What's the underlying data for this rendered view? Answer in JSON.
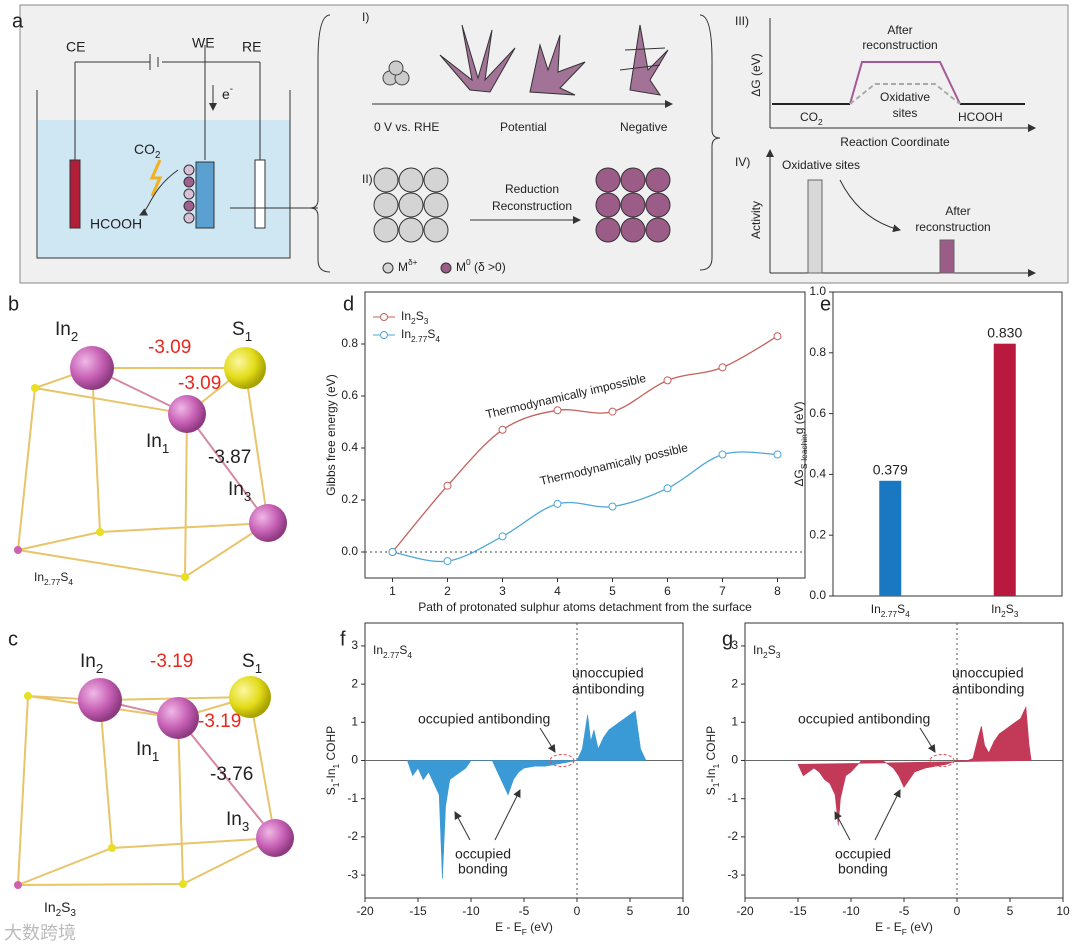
{
  "panel_a": {
    "label": "a",
    "ce": "CE",
    "we": "WE",
    "re": "RE",
    "electron": "e-",
    "co2": "CO2",
    "hcooh": "HCOOH",
    "s1": "I)",
    "s1_a": "0 V vs. RHE",
    "s1_b": "Potential",
    "s1_c": "Negative",
    "s2": "II)",
    "s2_l1": "Reduction",
    "s2_l2": "Reconstruction",
    "leg1": "Mδ+",
    "leg2": "M0 (δ >0)",
    "s3": "III)",
    "s3_y": "ΔG (eV)",
    "s3_a1": "After",
    "s3_a2": "reconstruction",
    "s3_o1": "Oxidative",
    "s3_o2": "sites",
    "s3_co2": "CO2",
    "s3_hcooh": "HCOOH",
    "s3_x": "Reaction Coordinate",
    "s4": "IV)",
    "s4_o": "Oxidative sites",
    "s4_y": "Activity",
    "s4_a1": "After",
    "s4_a2": "reconstruction"
  },
  "panel_b": {
    "label": "b",
    "in2": "In2",
    "s1": "S1",
    "e1": "-3.09",
    "e2": "-3.09",
    "in1": "In1",
    "e3": "-3.87",
    "in3": "In3",
    "formula": "In2.77S4"
  },
  "panel_c": {
    "label": "c",
    "in2": "In2",
    "s1": "S1",
    "e1": "-3.19",
    "e2": "-3.19",
    "in1": "In1",
    "e3": "-3.76",
    "in3": "In3",
    "formula": "In2S3"
  },
  "watermark": "大数跨境",
  "chart_data": [
    {
      "type": "line",
      "panel": "d",
      "x_label": "Path of protonated sulphur atoms detachment from the surface",
      "y_label": "Gibbs free energy (eV)",
      "x": [
        1,
        2,
        3,
        4,
        5,
        6,
        7,
        8
      ],
      "series": [
        {
          "name": "In2S3",
          "color": "#c4605c",
          "values": [
            0,
            0.255,
            0.47,
            0.545,
            0.54,
            0.66,
            0.71,
            0.83
          ]
        },
        {
          "name": "In2.77S4",
          "color": "#4ea6d8",
          "values": [
            0,
            -0.035,
            0.06,
            0.185,
            0.175,
            0.245,
            0.375,
            0.375
          ]
        }
      ],
      "annotations": [
        "Thermodynamically impossible",
        "Thermodynamically possible"
      ],
      "xlim": [
        0.5,
        8.5
      ],
      "xticks": [
        1,
        2,
        3,
        4,
        5,
        6,
        7,
        8
      ],
      "ylim": [
        -0.1,
        1.0
      ],
      "yticks": [
        {
          "value": 0,
          "label": "0.0"
        },
        0.2,
        0.4,
        0.6,
        0.8
      ],
      "legend": "upper left"
    },
    {
      "type": "bar",
      "panel": "e",
      "y_label": "ΔGS-leaching (eV)",
      "categories": [
        "In2.77S4",
        "In2S3"
      ],
      "values": [
        0.379,
        0.83
      ],
      "value_labels": [
        "0.379",
        "0.830"
      ],
      "colors": [
        "#1a78c2",
        "#b8193c"
      ],
      "ylim": [
        0,
        1.0
      ],
      "yticks": [
        {
          "value": 0,
          "label": "0.0"
        },
        0.2,
        0.4,
        0.6,
        0.8,
        {
          "value": 1,
          "label": "1.0"
        }
      ]
    },
    {
      "type": "area",
      "panel": "f",
      "x_label": "E - EF (eV)",
      "y_label": "S1-In1 COHP",
      "color": "#3a9ad6",
      "annotations": [
        "In2.77S4",
        "unoccupied",
        "antibonding",
        "occupied antibonding",
        "occupied",
        "bonding"
      ],
      "x": [
        -16,
        -15.5,
        -15,
        -14.5,
        -14,
        -13.5,
        -13,
        -12.7,
        -12.4,
        -12,
        -11.5,
        -11,
        -10.5,
        -10,
        -9,
        -8,
        -7.5,
        -7,
        -6.5,
        -6,
        -5.5,
        -5,
        -4,
        -3,
        -2,
        -1,
        0,
        0.5,
        1,
        1.3,
        1.6,
        2,
        2.5,
        3,
        3.5,
        4,
        4.5,
        5,
        5.5,
        6,
        6.5
      ],
      "values": [
        0,
        -0.4,
        -0.2,
        -0.5,
        -0.3,
        -0.6,
        -0.9,
        -3.1,
        -1.2,
        -0.5,
        -0.4,
        -0.3,
        -0.2,
        0,
        0,
        0,
        -0.3,
        -0.6,
        -0.9,
        -0.5,
        -0.3,
        -0.2,
        -0.15,
        -0.15,
        -0.1,
        -0.05,
        0,
        0.3,
        1.2,
        0.5,
        0.8,
        0.3,
        0.6,
        0.8,
        0.9,
        1.0,
        1.1,
        1.2,
        1.3,
        0.3,
        0
      ],
      "xlim": [
        -20,
        10
      ],
      "xticks": [
        -20,
        -15,
        -10,
        -5,
        0,
        5,
        10
      ],
      "ylim": [
        -3.6,
        3.6
      ],
      "yticks": [
        -3,
        -2,
        -1,
        0,
        1,
        2,
        3
      ]
    },
    {
      "type": "area",
      "panel": "g",
      "x_label": "E - EF (eV)",
      "y_label": "S1-In1 COHP",
      "color": "#c23a58",
      "annotations": [
        "In2S3",
        "unoccupied",
        "antibonding",
        "occupied antibonding",
        "occupied",
        "bonding"
      ],
      "x": [
        -15,
        -14.5,
        -14,
        -13.5,
        -13,
        -12.5,
        -12,
        -11.5,
        -11.2,
        -11,
        -10.5,
        -10,
        -9,
        -8,
        -7,
        -6,
        -5.5,
        -5,
        -4.5,
        -4,
        -3,
        -2,
        -1,
        0,
        1,
        1.5,
        2,
        2.3,
        2.6,
        3,
        3.5,
        4,
        4.5,
        5,
        5.5,
        6,
        6.5,
        6.8,
        7
      ],
      "values": [
        -0.1,
        -0.4,
        -0.3,
        -0.2,
        -0.3,
        -0.5,
        -0.6,
        -0.9,
        -1.7,
        -1.0,
        -0.4,
        -0.3,
        0,
        0,
        0,
        -0.2,
        -0.4,
        -0.7,
        -0.5,
        -0.3,
        -0.2,
        -0.15,
        -0.1,
        0,
        0,
        0.05,
        0.6,
        0.9,
        0.4,
        0.2,
        0.5,
        0.7,
        0.8,
        0.9,
        1.0,
        1.1,
        1.4,
        0.4,
        0
      ],
      "xlim": [
        -20,
        10
      ],
      "xticks": [
        -20,
        -15,
        -10,
        -5,
        0,
        5,
        10
      ],
      "ylim": [
        -3.6,
        3.6
      ],
      "yticks": [
        -3,
        -2,
        -1,
        0,
        1,
        2,
        3
      ]
    }
  ]
}
